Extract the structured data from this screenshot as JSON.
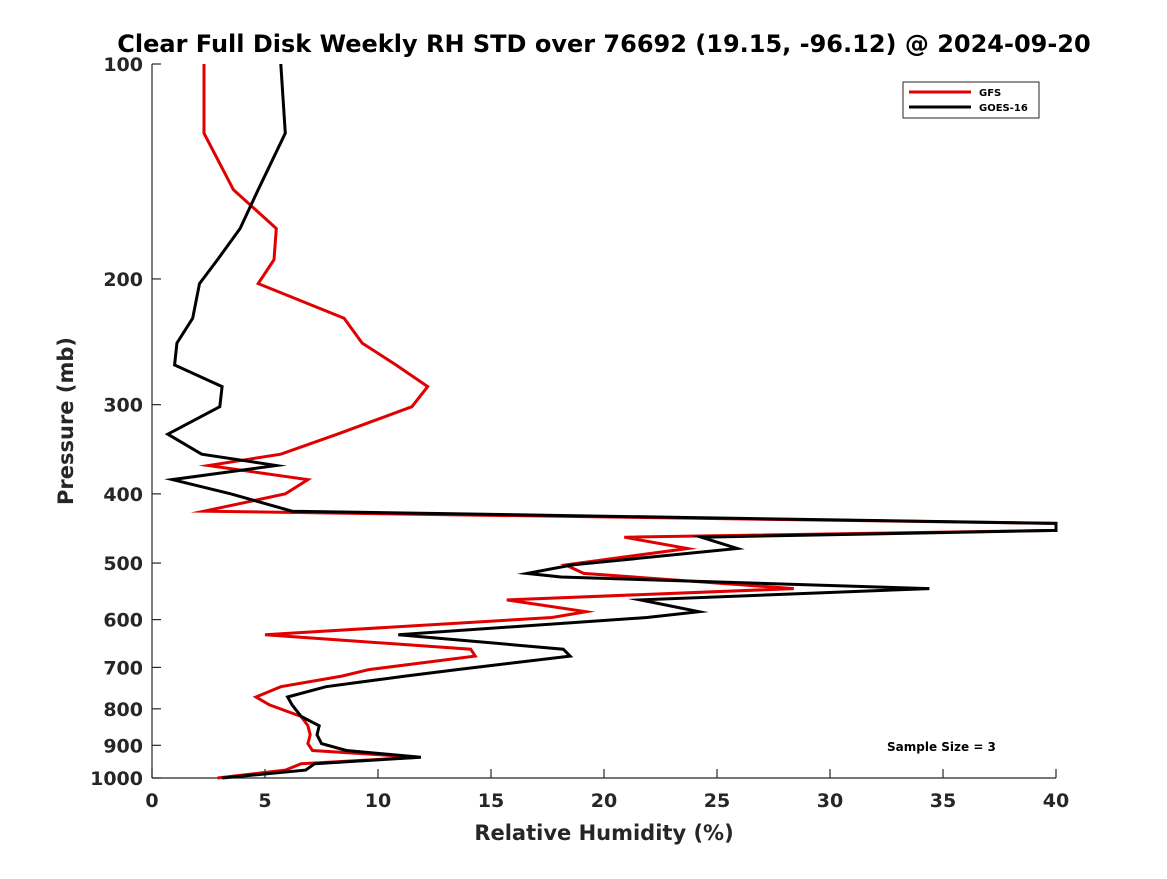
{
  "chart_data": {
    "type": "line",
    "title": "Clear Full Disk Weekly RH STD over 76692 (19.15, -96.12) @ 2024-09-20",
    "xlabel": "Relative Humidity (%)",
    "ylabel": "Pressure (mb)",
    "xlim": [
      0,
      40
    ],
    "ylim": [
      1000,
      100
    ],
    "yscale": "log",
    "xticks": [
      0,
      5,
      10,
      15,
      20,
      25,
      30,
      35,
      40
    ],
    "yticks": [
      100,
      200,
      300,
      400,
      500,
      600,
      700,
      800,
      900,
      1000
    ],
    "legend_position": "top-right",
    "annotation": "Sample Size = 3",
    "series": [
      {
        "name": "GFS",
        "color": "#e00000",
        "x": [
          2.3,
          2.3,
          3.6,
          5.5,
          5.4,
          4.7,
          8.5,
          9.3,
          10.8,
          12.2,
          11.5,
          8.2,
          5.7,
          2.5,
          6.9,
          5.9,
          2.3,
          40.0,
          40.0,
          20.9,
          23.7,
          18.3,
          19.1,
          28.4,
          15.7,
          19.2,
          17.7,
          5.0,
          14.1,
          14.3,
          9.6,
          8.4,
          5.7,
          4.6,
          5.2,
          6.6,
          6.9,
          7.0,
          6.9,
          7.1,
          11.8,
          6.6,
          5.9,
          2.9
        ],
        "y": [
          100,
          125,
          150,
          170,
          188,
          203,
          227,
          246,
          264,
          283,
          302,
          330,
          352,
          365,
          382,
          400,
          423,
          440,
          450,
          460,
          477,
          503,
          517,
          543,
          563,
          585,
          596,
          630,
          660,
          675,
          705,
          720,
          745,
          770,
          790,
          820,
          845,
          870,
          895,
          915,
          935,
          955,
          975,
          1000
        ]
      },
      {
        "name": "GOES-16",
        "color": "#000000",
        "x": [
          5.7,
          5.9,
          4.7,
          3.9,
          2.9,
          2.1,
          1.8,
          1.1,
          1.0,
          3.1,
          3.0,
          0.7,
          2.2,
          5.5,
          0.9,
          3.5,
          6.2,
          40.0,
          40.0,
          24.3,
          25.9,
          18.6,
          16.6,
          18.1,
          34.4,
          21.6,
          24.2,
          21.9,
          10.9,
          18.2,
          18.5,
          13.5,
          11.2,
          7.7,
          6.0,
          6.2,
          6.6,
          7.4,
          7.3,
          7.5,
          8.6,
          11.9,
          7.2,
          6.8,
          3.1
        ],
        "y": [
          100,
          125,
          150,
          170,
          188,
          203,
          227,
          246,
          264,
          283,
          302,
          330,
          352,
          365,
          382,
          400,
          423,
          440,
          450,
          460,
          477,
          503,
          517,
          523,
          543,
          563,
          585,
          596,
          630,
          660,
          675,
          705,
          720,
          745,
          770,
          790,
          820,
          845,
          870,
          895,
          915,
          935,
          955,
          975,
          1000
        ]
      }
    ]
  }
}
